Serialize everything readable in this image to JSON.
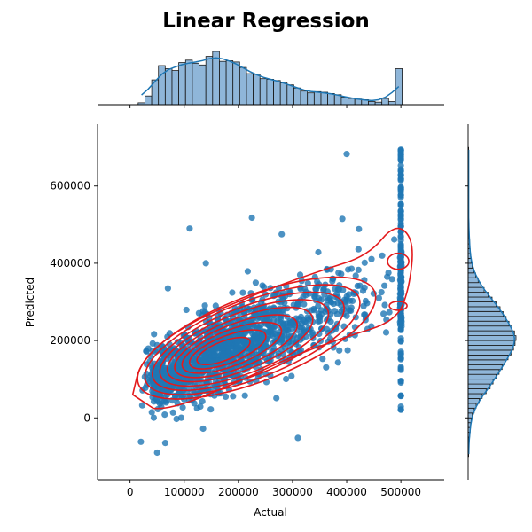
{
  "chart_data": {
    "type": "scatter",
    "title": "Linear Regression",
    "xlabel": "Actual",
    "ylabel": "Predicted",
    "xlim": [
      -60000,
      580000
    ],
    "ylim": [
      -160000,
      760000
    ],
    "x_ticks": [
      0,
      100000,
      200000,
      300000,
      400000,
      500000
    ],
    "x_tick_labels": [
      "0",
      "100000",
      "200000",
      "300000",
      "400000",
      "500000"
    ],
    "y_ticks": [
      0,
      200000,
      400000,
      600000
    ],
    "y_tick_labels": [
      "0",
      "200000",
      "400000",
      "600000"
    ],
    "colors": {
      "points": "#1f77b4",
      "contours": "#e31a1c",
      "histogram": "#8fb6d9"
    },
    "regression_trend": {
      "slope": 0.55,
      "intercept": 78000,
      "residual_sd": 62000
    },
    "x_distribution": {
      "min": 15000,
      "max": 500001,
      "mode": 160000,
      "cap_value": 500001,
      "cap_share": 0.05
    },
    "outlier_points": [
      {
        "x": 110000,
        "y": 490000
      },
      {
        "x": 225000,
        "y": 518000
      },
      {
        "x": 280000,
        "y": 475000
      },
      {
        "x": 400000,
        "y": 683000
      },
      {
        "x": 392000,
        "y": 515000
      },
      {
        "x": 310000,
        "y": -52000
      },
      {
        "x": 70000,
        "y": 335000
      },
      {
        "x": 140000,
        "y": 400000
      },
      {
        "x": 50000,
        "y": -90000
      },
      {
        "x": 20000,
        "y": -62000
      },
      {
        "x": 65000,
        "y": -65000
      },
      {
        "x": 135000,
        "y": -28000
      }
    ],
    "capped_column": {
      "x": 500001,
      "y_values": [
        25000,
        60000,
        95000,
        130000,
        150000,
        170000,
        200000,
        225000,
        250000,
        260000,
        275000,
        290000,
        300000,
        315000,
        330000,
        345000,
        360000,
        375000,
        390000,
        405000,
        420000,
        435000,
        450000,
        465000,
        480000,
        495000,
        510000,
        525000,
        540000,
        555000,
        570000,
        585000,
        600000,
        615000,
        630000,
        645000,
        660000,
        672000,
        685000,
        695000
      ]
    },
    "marginal_x_histogram": {
      "bin_edges": [
        15000,
        27500,
        40000,
        52500,
        65000,
        77500,
        90000,
        102500,
        115000,
        127500,
        140000,
        152500,
        165000,
        177500,
        190000,
        202500,
        215000,
        227500,
        240000,
        252500,
        265000,
        277500,
        290000,
        302500,
        315000,
        327500,
        340000,
        352500,
        365000,
        377500,
        390000,
        402500,
        415000,
        427500,
        440000,
        452500,
        465000,
        477500,
        490000,
        502500
      ],
      "counts": [
        3,
        14,
        40,
        63,
        58,
        55,
        68,
        72,
        67,
        64,
        78,
        86,
        70,
        71,
        69,
        60,
        50,
        49,
        42,
        41,
        39,
        35,
        32,
        27,
        22,
        19,
        21,
        20,
        18,
        16,
        12,
        10,
        9,
        8,
        5,
        4,
        10,
        5,
        58
      ]
    },
    "marginal_y_histogram": {
      "bin_edges": [
        -100000,
        -87500,
        -75000,
        -62500,
        -50000,
        -37500,
        -25000,
        -12500,
        0,
        12500,
        25000,
        37500,
        50000,
        62500,
        75000,
        87500,
        100000,
        112500,
        125000,
        137500,
        150000,
        162500,
        175000,
        187500,
        200000,
        212500,
        225000,
        237500,
        250000,
        262500,
        275000,
        287500,
        300000,
        312500,
        325000,
        337500,
        350000,
        362500,
        375000,
        387500,
        400000,
        412500,
        425000,
        437500,
        450000,
        462500,
        475000,
        487500,
        500000,
        512500,
        525000,
        537500,
        550000,
        562500,
        575000,
        587500,
        600000,
        612500,
        625000,
        637500,
        650000,
        662500,
        675000,
        687500,
        700000
      ],
      "counts": [
        1,
        1,
        2,
        2,
        3,
        4,
        5,
        6,
        8,
        12,
        16,
        22,
        28,
        36,
        44,
        50,
        56,
        62,
        68,
        74,
        80,
        86,
        91,
        94,
        96,
        93,
        88,
        82,
        76,
        70,
        64,
        56,
        48,
        40,
        32,
        26,
        20,
        15,
        11,
        8,
        6,
        5,
        4,
        3,
        3,
        2,
        2,
        2,
        1,
        1,
        1,
        1,
        1,
        1,
        1,
        1,
        1,
        1,
        1,
        1,
        1,
        1,
        1,
        1
      ]
    }
  }
}
